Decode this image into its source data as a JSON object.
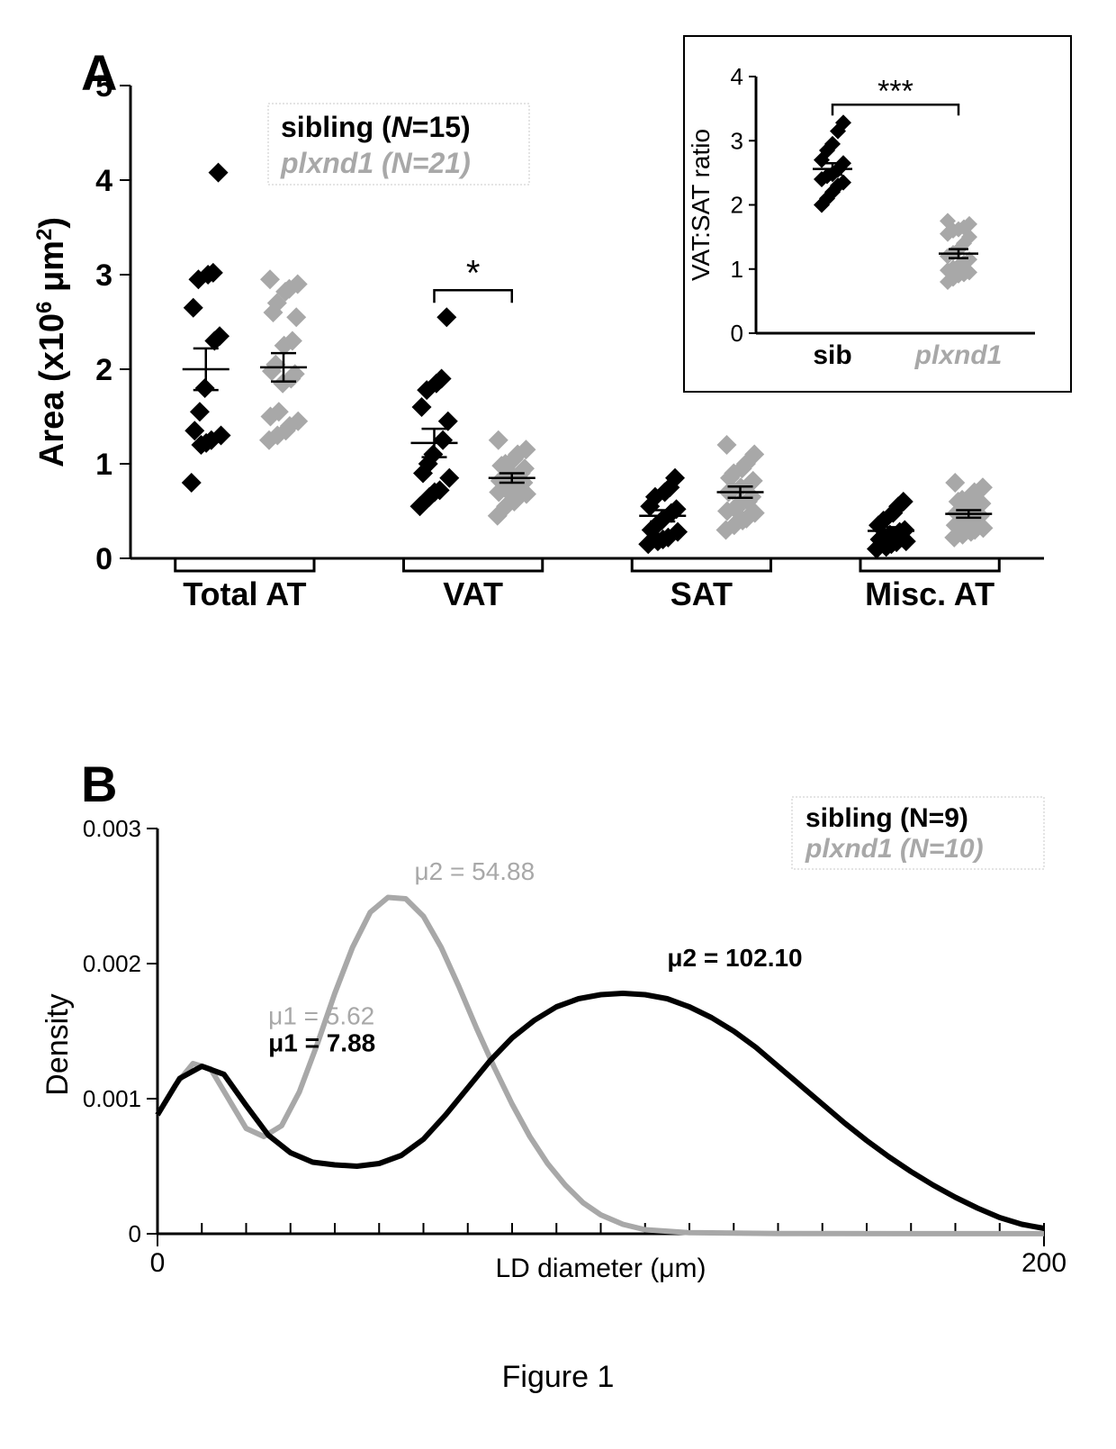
{
  "figure_caption": "Figure 1",
  "panelA": {
    "label": "A",
    "label_fontsize": 56,
    "type": "scatter-categorical",
    "background_color": "#ffffff",
    "y_axis": {
      "label": "Area (x10",
      "label_sup": "6",
      "label_suffix": " μm",
      "label_sup2": "2",
      "label_close": ")",
      "ticks": [
        0,
        1,
        2,
        3,
        4,
        5
      ],
      "tick_fontsize": 34,
      "label_fontsize": 38,
      "ylim": [
        0,
        5
      ]
    },
    "x_categories": [
      "Total AT",
      "VAT",
      "SAT",
      "Misc. AT"
    ],
    "x_fontsize": 36,
    "legend": {
      "line1_prefix": "sibling (",
      "line1_N": "N",
      "line1_suffix": "=15)",
      "line2_prefix": "plxnd1 (",
      "line2_N": "N",
      "line2_suffix": "=21)",
      "box_stroke": "#c8c8c8"
    },
    "colors": {
      "sibling": "#000000",
      "plxnd1": "#a8a8a8"
    },
    "marker": {
      "type": "diamond",
      "size": 11,
      "stroke": "#000000",
      "stroke_width": 0
    },
    "error_bar_color": "#000000",
    "series": {
      "Total AT": {
        "sib_points": [
          0.8,
          1.2,
          1.22,
          1.25,
          1.3,
          1.35,
          1.55,
          1.8,
          2.3,
          2.35,
          2.65,
          2.95,
          3.0,
          3.02,
          4.08
        ],
        "plx_points": [
          1.25,
          1.3,
          1.35,
          1.4,
          1.45,
          1.5,
          1.55,
          1.85,
          1.9,
          1.95,
          1.98,
          2.05,
          2.25,
          2.3,
          2.55,
          2.6,
          2.7,
          2.82,
          2.85,
          2.9,
          2.95
        ],
        "sib_mean": 2.0,
        "sib_sem": 0.22,
        "plx_mean": 2.02,
        "plx_sem": 0.15
      },
      "VAT": {
        "sib_points": [
          0.55,
          0.65,
          0.7,
          0.72,
          0.85,
          0.9,
          1.0,
          1.1,
          1.25,
          1.45,
          1.6,
          1.78,
          1.85,
          1.9,
          2.55
        ],
        "plx_points": [
          0.45,
          0.55,
          0.6,
          0.65,
          0.68,
          0.7,
          0.72,
          0.75,
          0.78,
          0.8,
          0.82,
          0.85,
          0.88,
          0.9,
          0.95,
          0.98,
          1.0,
          1.05,
          1.1,
          1.15,
          1.25
        ],
        "sib_mean": 1.22,
        "sib_sem": 0.15,
        "plx_mean": 0.85,
        "plx_sem": 0.05,
        "sig": "*"
      },
      "SAT": {
        "sib_points": [
          0.15,
          0.18,
          0.2,
          0.22,
          0.28,
          0.3,
          0.35,
          0.4,
          0.48,
          0.52,
          0.55,
          0.65,
          0.7,
          0.75,
          0.85
        ],
        "plx_points": [
          0.3,
          0.35,
          0.4,
          0.42,
          0.48,
          0.5,
          0.52,
          0.58,
          0.6,
          0.65,
          0.7,
          0.72,
          0.75,
          0.78,
          0.82,
          0.85,
          0.9,
          0.95,
          1.0,
          1.1,
          1.2
        ],
        "sib_mean": 0.45,
        "sib_sem": 0.06,
        "plx_mean": 0.7,
        "plx_sem": 0.06
      },
      "Misc. AT": {
        "sib_points": [
          0.1,
          0.12,
          0.15,
          0.17,
          0.18,
          0.2,
          0.22,
          0.25,
          0.28,
          0.3,
          0.35,
          0.4,
          0.48,
          0.55,
          0.6
        ],
        "plx_points": [
          0.22,
          0.25,
          0.28,
          0.3,
          0.32,
          0.35,
          0.38,
          0.4,
          0.42,
          0.45,
          0.48,
          0.5,
          0.52,
          0.55,
          0.58,
          0.6,
          0.62,
          0.65,
          0.7,
          0.75,
          0.8
        ],
        "sib_mean": 0.29,
        "sib_sem": 0.04,
        "plx_mean": 0.47,
        "plx_sem": 0.04
      }
    },
    "inset": {
      "y_label": "VAT:SAT ratio",
      "y_ticks": [
        0,
        1,
        2,
        3,
        4
      ],
      "y_fontsize": 26,
      "x_labels": [
        "sib",
        "plxnd1"
      ],
      "x_fontsize": 30,
      "sig": "***",
      "sib_points": [
        2.0,
        2.1,
        2.2,
        2.3,
        2.35,
        2.4,
        2.45,
        2.48,
        2.55,
        2.65,
        2.7,
        2.85,
        2.95,
        3.15,
        3.28
      ],
      "plx_points": [
        0.8,
        0.85,
        0.9,
        0.92,
        0.95,
        0.98,
        1.02,
        1.05,
        1.1,
        1.15,
        1.2,
        1.25,
        1.3,
        1.4,
        1.5,
        1.55,
        1.6,
        1.62,
        1.65,
        1.7,
        1.75
      ],
      "sib_mean": 2.56,
      "sib_sem": 0.09,
      "plx_mean": 1.24,
      "plx_sem": 0.07,
      "ylim": [
        0,
        4
      ]
    }
  },
  "panelB": {
    "label": "B",
    "label_fontsize": 56,
    "type": "line-density",
    "y_label": "Density",
    "y_ticks": [
      0,
      0.001,
      0.002,
      0.003
    ],
    "y_tick_labels": [
      "0",
      "0.001",
      "0.002",
      "0.003"
    ],
    "y_fontsize": 26,
    "x_label": "LD diameter (μm)",
    "x_ticks": [
      0,
      200
    ],
    "x_minor_step": 10,
    "x_fontsize": 30,
    "xlim": [
      0,
      200
    ],
    "ylim": [
      0,
      0.003
    ],
    "line_width": 6,
    "colors": {
      "sibling": "#000000",
      "plxnd1": "#a8a8a8"
    },
    "legend": {
      "line1_prefix": "sibling (",
      "line1_N": "N",
      "line1_suffix": "=9)",
      "line2_prefix": "plxnd1 (",
      "line2_N": "N",
      "line2_suffix": "=10)"
    },
    "annotations": {
      "mu1_plx": "μ1 = 5.62",
      "mu1_sib": "μ1 = 7.88",
      "mu2_plx": "μ2 = 54.88",
      "mu2_sib": "μ2 = 102.10"
    },
    "curves": {
      "sibling": [
        [
          0,
          0.00088
        ],
        [
          5,
          0.00115
        ],
        [
          10,
          0.00124
        ],
        [
          15,
          0.00118
        ],
        [
          20,
          0.00095
        ],
        [
          25,
          0.00073
        ],
        [
          30,
          0.0006
        ],
        [
          35,
          0.00053
        ],
        [
          40,
          0.00051
        ],
        [
          45,
          0.0005
        ],
        [
          50,
          0.00052
        ],
        [
          55,
          0.00058
        ],
        [
          60,
          0.0007
        ],
        [
          65,
          0.00088
        ],
        [
          70,
          0.00108
        ],
        [
          75,
          0.00128
        ],
        [
          80,
          0.00145
        ],
        [
          85,
          0.00158
        ],
        [
          90,
          0.00168
        ],
        [
          95,
          0.00174
        ],
        [
          100,
          0.00177
        ],
        [
          105,
          0.00178
        ],
        [
          110,
          0.00177
        ],
        [
          115,
          0.00174
        ],
        [
          120,
          0.00168
        ],
        [
          125,
          0.0016
        ],
        [
          130,
          0.0015
        ],
        [
          135,
          0.00138
        ],
        [
          140,
          0.00124
        ],
        [
          145,
          0.0011
        ],
        [
          150,
          0.00096
        ],
        [
          155,
          0.00082
        ],
        [
          160,
          0.00069
        ],
        [
          165,
          0.00057
        ],
        [
          170,
          0.00046
        ],
        [
          175,
          0.00036
        ],
        [
          180,
          0.00027
        ],
        [
          185,
          0.00019
        ],
        [
          190,
          0.00012
        ],
        [
          195,
          7e-05
        ],
        [
          200,
          4e-05
        ]
      ],
      "plxnd1": [
        [
          0,
          0.00088
        ],
        [
          4,
          0.0011
        ],
        [
          8,
          0.00126
        ],
        [
          12,
          0.00122
        ],
        [
          16,
          0.001
        ],
        [
          20,
          0.00078
        ],
        [
          24,
          0.00072
        ],
        [
          28,
          0.0008
        ],
        [
          32,
          0.00105
        ],
        [
          36,
          0.0014
        ],
        [
          40,
          0.00178
        ],
        [
          44,
          0.00212
        ],
        [
          48,
          0.00238
        ],
        [
          52,
          0.00249
        ],
        [
          56,
          0.00248
        ],
        [
          60,
          0.00235
        ],
        [
          64,
          0.00212
        ],
        [
          68,
          0.00183
        ],
        [
          72,
          0.00152
        ],
        [
          76,
          0.00123
        ],
        [
          80,
          0.00096
        ],
        [
          84,
          0.00072
        ],
        [
          88,
          0.00052
        ],
        [
          92,
          0.00036
        ],
        [
          96,
          0.00023
        ],
        [
          100,
          0.00014
        ],
        [
          105,
          7e-05
        ],
        [
          110,
          3e-05
        ],
        [
          120,
          8e-06
        ],
        [
          140,
          1.5e-06
        ],
        [
          200,
          5e-07
        ]
      ]
    }
  }
}
